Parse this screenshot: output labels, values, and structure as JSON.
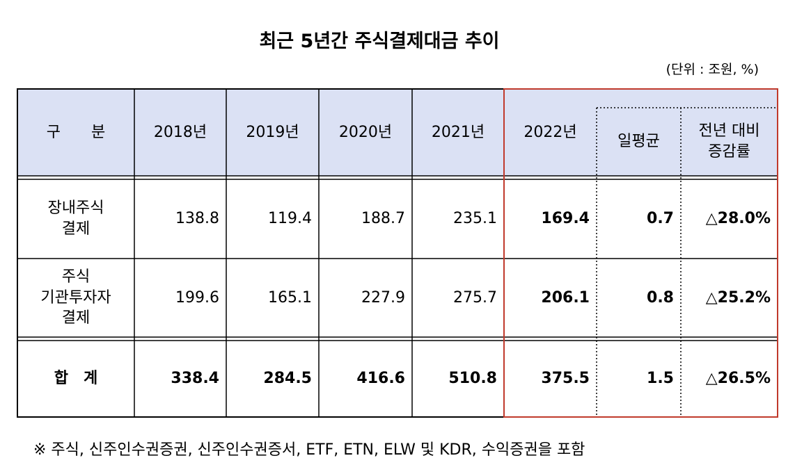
{
  "title": "최근 5년간 주식결제대금 추이",
  "unit": "(단위 : 조원, %)",
  "table": {
    "header": [
      "구　　분",
      "2018년",
      "2019년",
      "2020년",
      "2021년",
      "2022년",
      "일평균",
      "전년 대비\n증감률"
    ],
    "rows": [
      [
        "장내주식\n결제",
        "138.8",
        "119.4",
        "188.7",
        "235.1",
        "169.4",
        "0.7",
        "△28.0%"
      ],
      [
        "주식\n기관투자자\n결제",
        "199.6",
        "165.1",
        "227.9",
        "275.7",
        "206.1",
        "0.8",
        "△25.2%"
      ],
      [
        "합　계",
        "338.4",
        "284.5",
        "416.6",
        "510.8",
        "375.5",
        "1.5",
        "△26.5%"
      ]
    ]
  },
  "footnote": "※ 주식, 신주인수권증권, 신주인수권증서, ETF, ETN, ELW 및 KDR, 수익증권을 포함"
}
